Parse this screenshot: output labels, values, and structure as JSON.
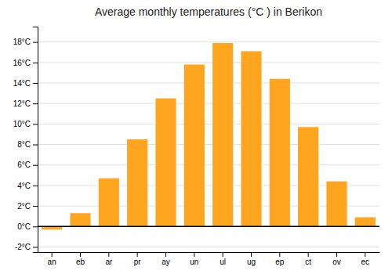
{
  "chart_data": {
    "type": "bar",
    "title": "Average monthly temperatures (°C ) in Berikon",
    "categories": [
      "an",
      "eb",
      "ar",
      "pr",
      "ay",
      "un",
      "ul",
      "ug",
      "ep",
      "ct",
      "ov",
      "ec"
    ],
    "values": [
      -0.3,
      1.3,
      4.7,
      8.5,
      12.5,
      15.8,
      17.9,
      17.1,
      14.4,
      9.7,
      4.4,
      0.9
    ],
    "color": "#FFA520",
    "ylim": [
      -2.5,
      19.5
    ],
    "yticks": [
      {
        "value": -2,
        "label": "-2°C"
      },
      {
        "value": 0,
        "label": "0°C"
      },
      {
        "value": 2,
        "label": "2°C"
      },
      {
        "value": 4,
        "label": "4°C"
      },
      {
        "value": 6,
        "label": "6°C"
      },
      {
        "value": 8,
        "label": "8°C"
      },
      {
        "value": 10,
        "label": "10°C"
      },
      {
        "value": 12,
        "label": "12°C"
      },
      {
        "value": 14,
        "label": "14°C"
      },
      {
        "value": 16,
        "label": "16°C"
      },
      {
        "value": 18,
        "label": "18°C"
      }
    ],
    "grid": true
  }
}
